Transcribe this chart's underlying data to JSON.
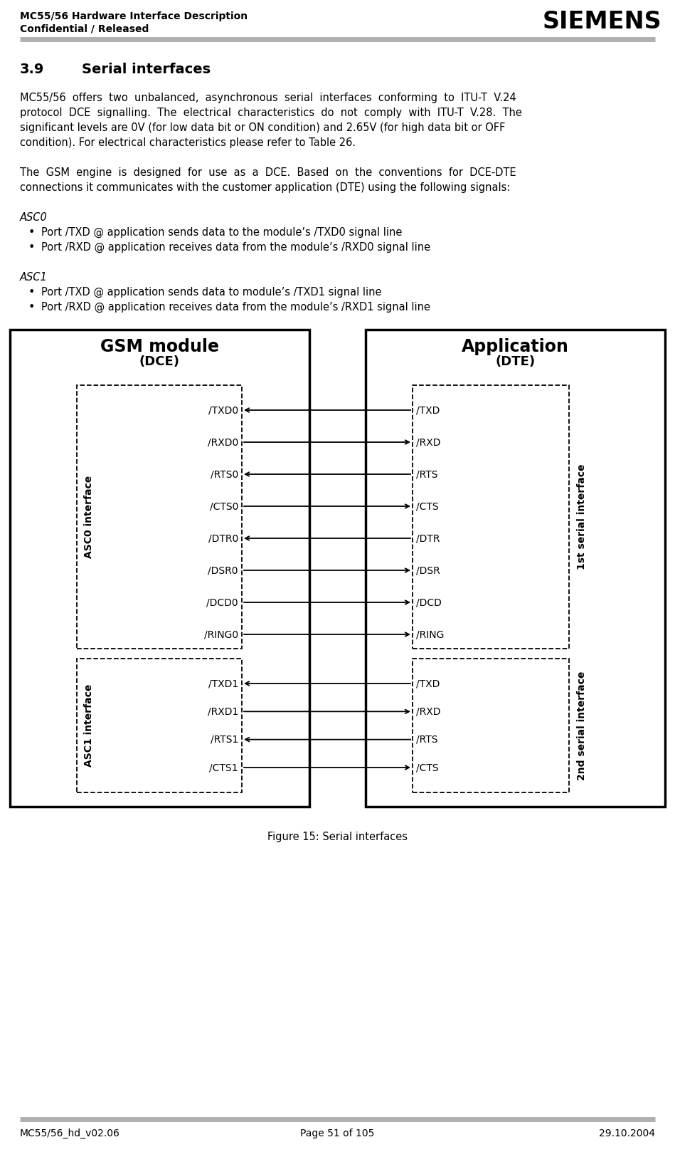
{
  "page_title_left": "MC55/56 Hardware Interface Description",
  "page_subtitle_left": "Confidential / Released",
  "page_title_right": "SIEMENS",
  "footer_left": "MC55/56_hd_v02.06",
  "footer_center": "Page 51 of 105",
  "footer_right": "29.10.2004",
  "section_number": "3.9",
  "section_title": "Serial interfaces",
  "para1_lines": [
    "MC55/56  offers  two  unbalanced,  asynchronous  serial  interfaces  conforming  to  ITU-T  V.24",
    "protocol  DCE  signalling.  The  electrical  characteristics  do  not  comply  with  ITU-T  V.28.  The",
    "significant levels are 0V (for low data bit or ON condition) and 2.65V (for high data bit or OFF",
    "condition). For electrical characteristics please refer to Table 26."
  ],
  "para2_lines": [
    "The  GSM  engine  is  designed  for  use  as  a  DCE.  Based  on  the  conventions  for  DCE-DTE",
    "connections it communicates with the customer application (DTE) using the following signals:"
  ],
  "asc0_label": "ASC0",
  "asc0_bullets": [
    "Port /TXD @ application sends data to the module’s /TXD0 signal line",
    "Port /RXD @ application receives data from the module’s /RXD0 signal line"
  ],
  "asc1_label": "ASC1",
  "asc1_bullets": [
    "Port /TXD @ application sends data to module’s /TXD1 signal line",
    "Port /RXD @ application receives data from the module’s /RXD1 signal line"
  ],
  "fig_caption": "Figure 15: Serial interfaces",
  "gsm_title": "GSM module",
  "gsm_subtitle": "(DCE)",
  "app_title": "Application",
  "app_subtitle": "(DTE)",
  "asc0_box_label": "ASC0 interface",
  "asc1_box_label": "ASC1 interface",
  "serial1_label": "1st serial interface",
  "serial2_label": "2nd serial interface",
  "serial1_super": "st",
  "serial2_super": "nd",
  "asc0_signals_left": [
    "/TXD0",
    "/RXD0",
    "/RTS0",
    "/CTS0",
    "/DTR0",
    "/DSR0",
    "/DCD0",
    "/RING0"
  ],
  "asc0_signals_right": [
    "/TXD",
    "/RXD",
    "/RTS",
    "/CTS",
    "/DTR",
    "/DSR",
    "/DCD",
    "/RING"
  ],
  "asc0_arrows": [
    "left",
    "right",
    "left",
    "right",
    "left",
    "right",
    "right",
    "right"
  ],
  "asc1_signals_left": [
    "/TXD1",
    "/RXD1",
    "/RTS1",
    "/CTS1"
  ],
  "asc1_signals_right": [
    "/TXD",
    "/RXD",
    "/RTS",
    "/CTS"
  ],
  "asc1_arrows": [
    "left",
    "right",
    "left",
    "right"
  ],
  "bg_color": "#ffffff",
  "text_color": "#000000",
  "header_line_color": "#b0b0b0"
}
